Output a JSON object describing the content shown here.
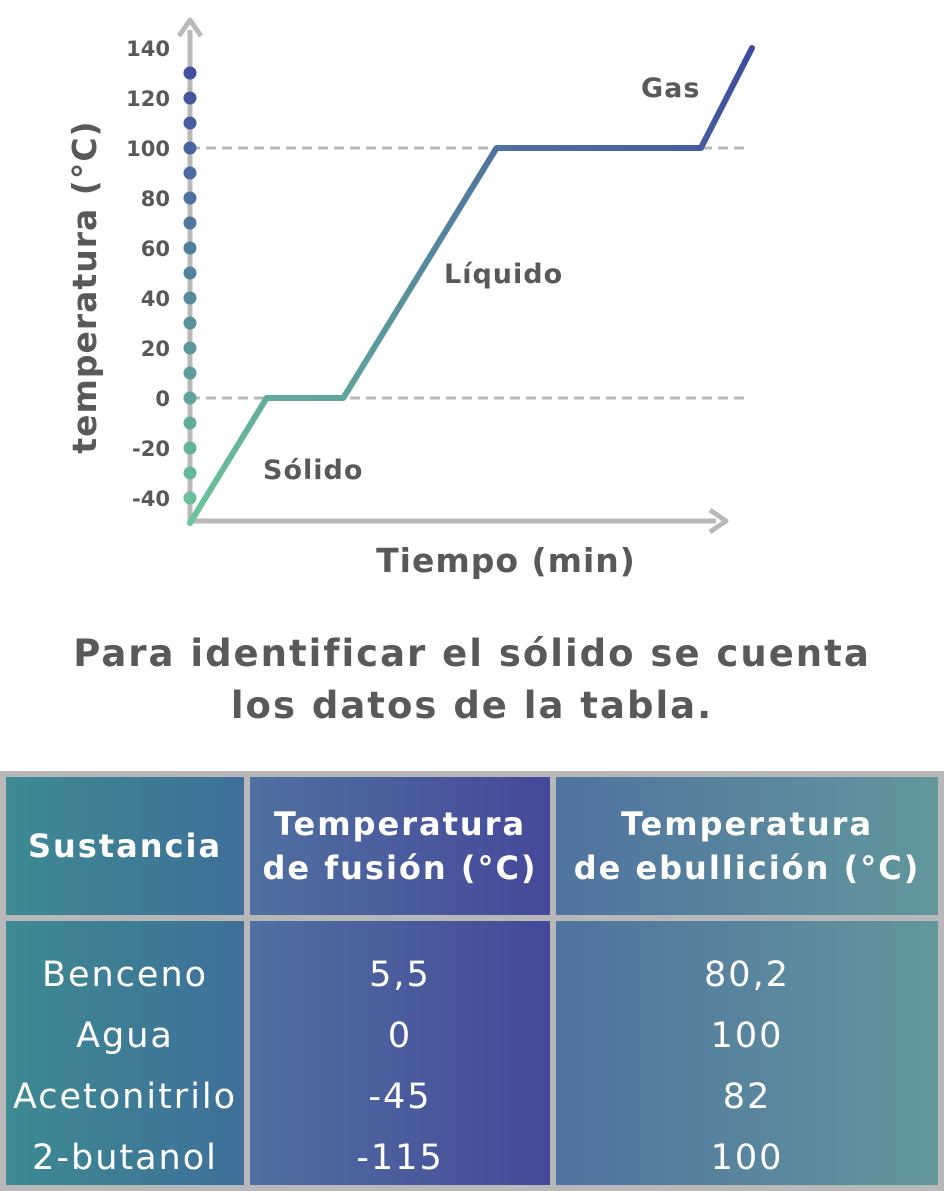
{
  "colors": {
    "axis": "#b9b9b9",
    "text": "#58595b",
    "curve_start": "#6cc59a",
    "curve_end": "#3f4a9f",
    "table_border": "#b8b8b8"
  },
  "chart_data": {
    "type": "line",
    "ylabel": "temperatura (°C)",
    "xlabel": "Tiempo (min)",
    "yticks": [
      "140",
      "120",
      "100",
      "80",
      "60",
      "40",
      "20",
      "0",
      "-20",
      "-40"
    ],
    "ytick_values": [
      140,
      120,
      100,
      80,
      60,
      40,
      20,
      0,
      -20,
      -40
    ],
    "ylim": [
      -50,
      140
    ],
    "axis_dots": [
      130,
      120,
      110,
      100,
      90,
      80,
      70,
      60,
      50,
      40,
      30,
      20,
      10,
      0,
      -10,
      -20,
      -30,
      -40
    ],
    "reference_lines": [
      100,
      0
    ],
    "series": [
      {
        "x": [
          0,
          3,
          6,
          12,
          20,
          22
        ],
        "y": [
          -50,
          0,
          0,
          100,
          100,
          140
        ]
      }
    ],
    "region_labels": [
      {
        "text": "Sólido"
      },
      {
        "text": "Líquido"
      },
      {
        "text": "Gas"
      }
    ]
  },
  "caption": {
    "line1": "Para identificar el sólido se cuenta",
    "line2": "los datos de la tabla."
  },
  "table": {
    "headers": [
      [
        "Sustancia"
      ],
      [
        "Temperatura",
        "de fusión (°C)"
      ],
      [
        "Temperatura",
        "de ebullición  (°C)"
      ]
    ],
    "rows": [
      [
        "Benceno",
        "5,5",
        "80,2"
      ],
      [
        "Agua",
        "0",
        "100"
      ],
      [
        "Acetonitrilo",
        "-45",
        "82"
      ],
      [
        "2-butanol",
        "-115",
        "100"
      ]
    ]
  }
}
